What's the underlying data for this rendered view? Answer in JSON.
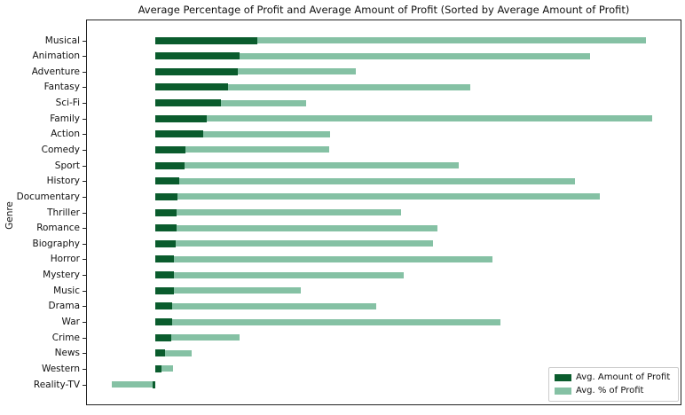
{
  "chart_data": {
    "type": "bar",
    "orientation": "horizontal",
    "title": "Average Percentage of Profit and Average Amount of Profit (Sorted by Average Amount of Profit)",
    "xlabel": "",
    "ylabel": "Genre",
    "x_axis_unlabeled": true,
    "grid": false,
    "legend_position": "lower right",
    "xlim": [
      -78,
      593
    ],
    "categories": [
      "Musical",
      "Animation",
      "Adventure",
      "Fantasy",
      "Sci-Fi",
      "Family",
      "Action",
      "Comedy",
      "Sport",
      "History",
      "Documentary",
      "Thriller",
      "Romance",
      "Biography",
      "Horror",
      "Mystery",
      "Music",
      "Drama",
      "War",
      "Crime",
      "News",
      "Western",
      "Reality-TV"
    ],
    "series": [
      {
        "name": "Avg. Amount of Profit",
        "color": "#0a5c2d",
        "values": [
          115,
          95,
          93,
          82,
          74,
          58,
          54,
          34,
          33,
          27,
          25,
          24,
          23.5,
          23,
          21,
          21,
          21,
          19,
          19,
          18,
          11,
          7,
          -3
        ]
      },
      {
        "name": "Avg. % of Profit",
        "color": "#85c1a4",
        "values": [
          553,
          490,
          226,
          355,
          170,
          560,
          197,
          196,
          342,
          473,
          501,
          277,
          318,
          313,
          380,
          280,
          164,
          249,
          389,
          95,
          41,
          20,
          -49
        ]
      }
    ]
  }
}
